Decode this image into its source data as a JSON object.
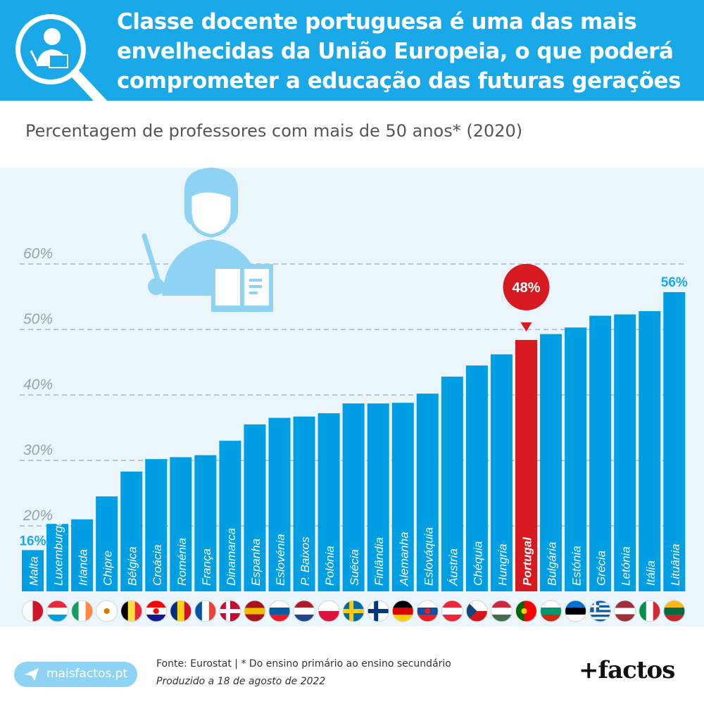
{
  "header": {
    "title": "Classe docente portuguesa é uma das mais envelhecidas da União Europeia, o que poderá comprometer a educação das futuras gerações",
    "icon": "teacher-magnifier-icon"
  },
  "chart_data": {
    "type": "bar",
    "title": "",
    "subtitle": "Percentagem de professores com mais de 50 anos* (2020)",
    "xlabel": "",
    "ylabel": "",
    "ylim": [
      10,
      60
    ],
    "yticks": [
      "20%",
      "30%",
      "40%",
      "50%",
      "60%"
    ],
    "grid": true,
    "categories": [
      "Malta",
      "Luxemburgo",
      "Irlanda",
      "Chipre",
      "Bélgica",
      "Croácia",
      "Roménia",
      "França",
      "Dinamarca",
      "Espanha",
      "Eslovénia",
      "P. Baixos",
      "Polónia",
      "Suécia",
      "Finlândia",
      "Alemanha",
      "Eslováquia",
      "Áustria",
      "Chéquia",
      "Hungria",
      "Portugal",
      "Bulgária",
      "Estónia",
      "Grécia",
      "Letónia",
      "Itália",
      "Lituânia"
    ],
    "values": [
      16.3,
      20.3,
      21.0,
      24.5,
      28.3,
      30.2,
      30.5,
      30.8,
      33.0,
      35.5,
      36.5,
      36.7,
      37.2,
      38.7,
      38.7,
      38.8,
      40.2,
      42.8,
      44.5,
      46.2,
      48.4,
      49.3,
      50.3,
      52.1,
      52.3,
      52.8,
      55.7
    ],
    "highlight": "Portugal",
    "highlight_label": "48%",
    "first_label": "16%",
    "last_label": "56%",
    "colors": {
      "bar": "#009fe3",
      "highlight": "#d71920",
      "grid": "#b0b8bd",
      "tick": "#9aa3a8"
    }
  },
  "flags": [
    "malta-flag",
    "luxembourg-flag",
    "ireland-flag",
    "cyprus-flag",
    "belgium-flag",
    "croatia-flag",
    "romania-flag",
    "france-flag",
    "denmark-flag",
    "spain-flag",
    "slovenia-flag",
    "netherlands-flag",
    "poland-flag",
    "sweden-flag",
    "finland-flag",
    "germany-flag",
    "slovakia-flag",
    "austria-flag",
    "czechia-flag",
    "hungary-flag",
    "portugal-flag",
    "bulgaria-flag",
    "estonia-flag",
    "greece-flag",
    "latvia-flag",
    "italy-flag",
    "lithuania-flag"
  ],
  "footer": {
    "site": "maisfactos.pt",
    "source": "Fonte: Eurostat | * Do ensino primário ao ensino secundário",
    "produced": "Produzido a 18 de agosto de 2022",
    "brand": "+factos"
  }
}
